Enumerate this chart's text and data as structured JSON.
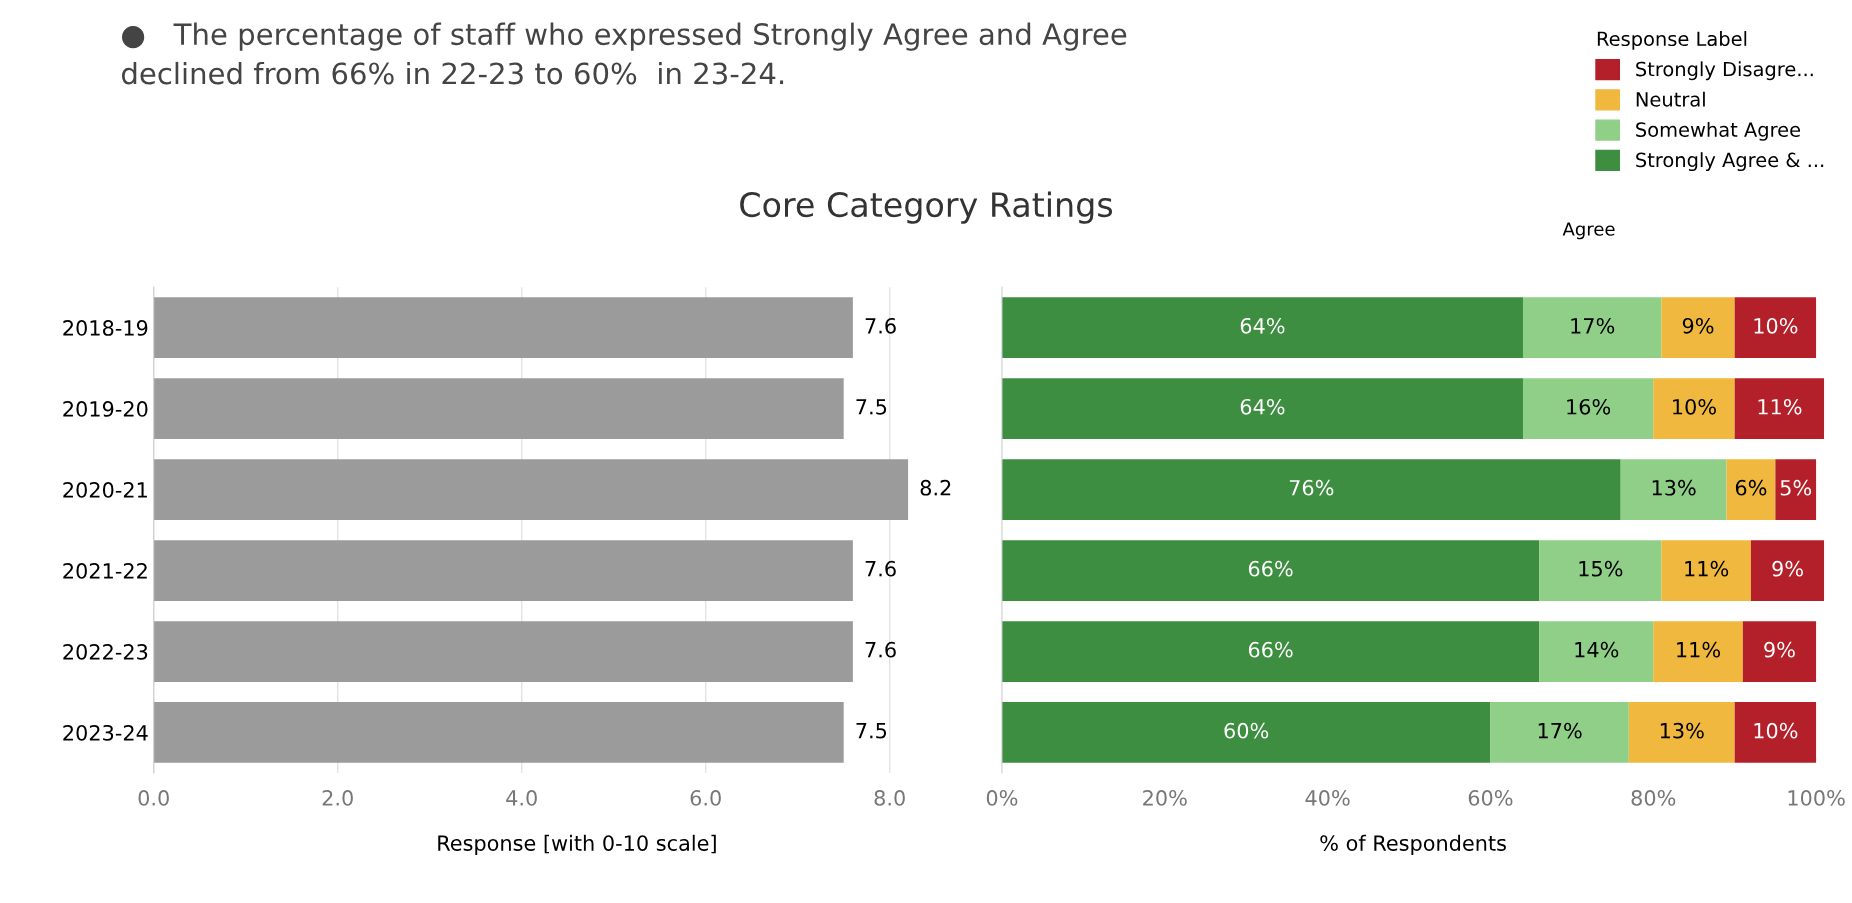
{
  "chart_data": [
    {
      "type": "bar",
      "orientation": "horizontal",
      "title": "Core Category Ratings",
      "annotations": [
        "●   The percentage of staff who expressed Strongly Agree and Agree\ndeclined from 66% in 22-23 to 60%  in 23-24."
      ],
      "categories": [
        "2018-19",
        "2019-20",
        "2020-21",
        "2021-22",
        "2022-23",
        "2023-24"
      ],
      "values": [
        7.6,
        7.5,
        8.2,
        7.6,
        7.6,
        7.5
      ],
      "color": "#9b9b9b",
      "data_labels": true,
      "xlabel": "Response [with 0-10 scale]",
      "xlim": [
        0,
        9.2
      ],
      "xticks": [
        {
          "value": 0,
          "label": "0.0"
        },
        {
          "value": 2,
          "label": "2.0"
        },
        {
          "value": 4,
          "label": "4.0"
        },
        {
          "value": 6,
          "label": "6.0"
        },
        {
          "value": 8,
          "label": "8.0"
        }
      ],
      "grid": "x"
    },
    {
      "type": "bar",
      "orientation": "horizontal",
      "stacked": true,
      "categories": [
        "2018-19",
        "2019-20",
        "2020-21",
        "2021-22",
        "2022-23",
        "2023-24"
      ],
      "series": [
        {
          "name": "Strongly Agree & ...",
          "color": "#3e8e41",
          "values": [
            64,
            64,
            76,
            66,
            66,
            60
          ],
          "value_labels": [
            "64%",
            "64%",
            "76%",
            "66%",
            "66%",
            "60%"
          ]
        },
        {
          "name": "Somewhat Agree",
          "color": "#8fcf88",
          "values": [
            17,
            16,
            13,
            15,
            14,
            17
          ],
          "value_labels": [
            "17%",
            "16%",
            "13%",
            "15%",
            "14%",
            "17%"
          ]
        },
        {
          "name": "Neutral",
          "color": "#f0b83e",
          "values": [
            9,
            10,
            6,
            11,
            11,
            13
          ],
          "value_labels": [
            "9%",
            "10%",
            "6%",
            "11%",
            "11%",
            "13%"
          ]
        },
        {
          "name": "Strongly Disagre...",
          "color": "#b3202a",
          "values": [
            10,
            11,
            5,
            9,
            9,
            10
          ],
          "value_labels": [
            "10%",
            "11%",
            "5%",
            "9%",
            "9%",
            "10%"
          ]
        }
      ],
      "legend_title": "Response Label",
      "legend": "top right",
      "annotations": [
        "Agree"
      ],
      "xlabel": "% of Respondents",
      "xlim": [
        0,
        101
      ],
      "xticks": [
        {
          "value": 0,
          "label": "0%"
        },
        {
          "value": 20,
          "label": "20%"
        },
        {
          "value": 40,
          "label": "40%"
        },
        {
          "value": 60,
          "label": "60%"
        },
        {
          "value": 80,
          "label": "80%"
        },
        {
          "value": 100,
          "label": "100%"
        }
      ],
      "tick_labels": "x",
      "grid": false
    }
  ]
}
